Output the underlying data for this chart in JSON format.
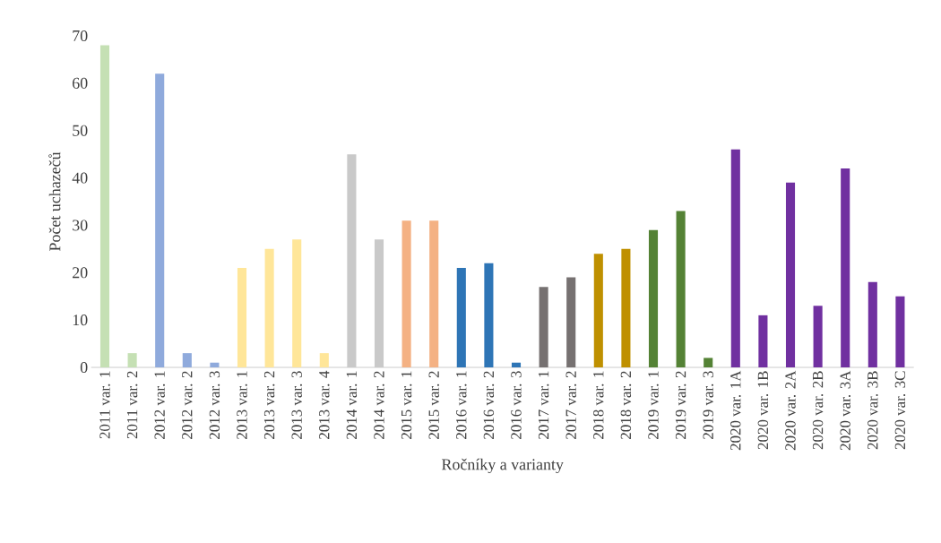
{
  "chart_data": {
    "type": "bar",
    "xlabel": "Ročníky a varianty",
    "ylabel": "Počet uchazečů",
    "categories": [
      "2011 var. 1",
      "2011 var. 2",
      "2012 var. 1",
      "2012 var. 2",
      "2012 var. 3",
      "2013 var. 1",
      "2013 var. 2",
      "2013 var. 3",
      "2013 var. 4",
      "2014 var. 1",
      "2014 var. 2",
      "2015 var. 1",
      "2015 var. 2",
      "2016 var. 1",
      "2016 var. 2",
      "2016 var. 3",
      "2017 var. 1",
      "2017 var. 2",
      "2018 var. 1",
      "2018 var. 2",
      "2019 var. 1",
      "2019 var. 2",
      "2019 var. 3",
      "2020 var. 1A",
      "2020 var. 1B",
      "2020 var. 2A",
      "2020 var. 2B",
      "2020 var. 3A",
      "2020 var. 3B",
      "2020 var. 3C"
    ],
    "values": [
      68,
      3,
      62,
      3,
      1,
      21,
      25,
      27,
      3,
      45,
      27,
      31,
      31,
      21,
      22,
      1,
      17,
      19,
      24,
      25,
      29,
      33,
      2,
      46,
      11,
      39,
      13,
      42,
      18,
      15
    ],
    "colors": [
      "#c5e0b4",
      "#c5e0b4",
      "#8faadc",
      "#8faadc",
      "#8faadc",
      "#ffe699",
      "#ffe699",
      "#ffe699",
      "#ffe699",
      "#c9c9c9",
      "#c9c9c9",
      "#f4b183",
      "#f4b183",
      "#2e75b6",
      "#2e75b6",
      "#2e75b6",
      "#767171",
      "#767171",
      "#bf9000",
      "#bf9000",
      "#548235",
      "#548235",
      "#548235",
      "#7030a0",
      "#7030a0",
      "#7030a0",
      "#7030a0",
      "#7030a0",
      "#7030a0",
      "#7030a0"
    ],
    "ylim": [
      0,
      70
    ],
    "yticks": [
      0,
      10,
      20,
      30,
      40,
      50,
      60,
      70
    ],
    "grid": false
  }
}
